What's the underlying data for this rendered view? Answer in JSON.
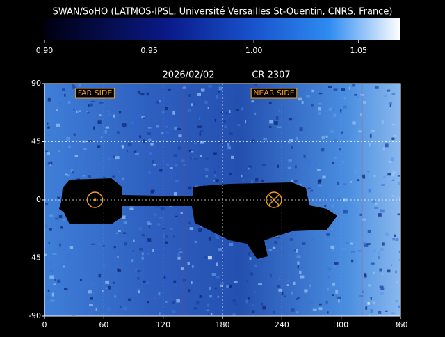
{
  "title": "SWAN/SoHO (LATMOS-IPSL, Université Versailles St-Quentin, CNRS, France)",
  "colorbar": {
    "lim": [
      0.9,
      1.07
    ],
    "ticks": [
      {
        "value": 0.9,
        "label": "0.90"
      },
      {
        "value": 0.95,
        "label": "0.95"
      },
      {
        "value": 1.0,
        "label": "1.00"
      },
      {
        "value": 1.05,
        "label": "1.05"
      }
    ]
  },
  "date": "2026/02/02",
  "rotation": "CR 2307",
  "map": {
    "xlim": [
      0,
      360
    ],
    "ylim": [
      -90,
      90
    ],
    "xticks": [
      0,
      60,
      120,
      180,
      240,
      300,
      360
    ],
    "yticks": [
      -90,
      -45,
      0,
      45,
      90
    ],
    "labels": [
      {
        "text": "FAR SIDE",
        "x": 51
      },
      {
        "text": "NEAR SIDE",
        "x": 232
      }
    ],
    "red_lines": [
      141,
      321
    ],
    "circles": [
      {
        "x": 51,
        "y": 0
      },
      {
        "x": 232,
        "y": 0
      }
    ]
  }
}
